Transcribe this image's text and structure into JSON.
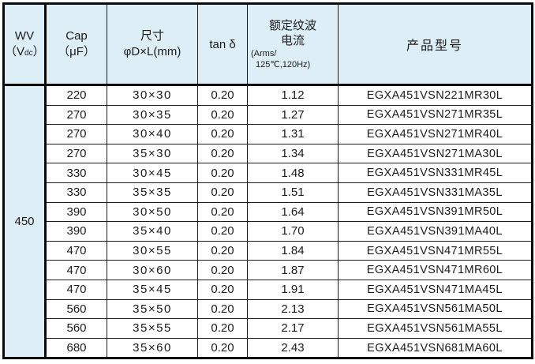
{
  "header": {
    "wv": {
      "line1": "WV",
      "open": "（V",
      "sub": "dc",
      "close": "）"
    },
    "cap": {
      "line1": "Cap",
      "line2": "（μF）"
    },
    "size": {
      "line1": "尺寸",
      "line2": "φD×L(mm)"
    },
    "tan_delta": "tan δ",
    "ripple": {
      "line1": "额定纹波",
      "line2": "电流",
      "line3": "(Arms/",
      "line4": "125℃,120Hz)"
    },
    "model": "产品型号"
  },
  "wv_value": "450",
  "rows": [
    {
      "cap": "220",
      "size": "30×30",
      "tan": "0.20",
      "ripple": "1.12",
      "model": "EGXA451VSN221MR30L"
    },
    {
      "cap": "270",
      "size": "30×35",
      "tan": "0.20",
      "ripple": "1.27",
      "model": "EGXA451VSN271MR35L"
    },
    {
      "cap": "270",
      "size": "30×40",
      "tan": "0.20",
      "ripple": "1.31",
      "model": "EGXA451VSN271MR40L"
    },
    {
      "cap": "270",
      "size": "35×30",
      "tan": "0.20",
      "ripple": "1.34",
      "model": "EGXA451VSN271MA30L"
    },
    {
      "cap": "330",
      "size": "30×45",
      "tan": "0.20",
      "ripple": "1.48",
      "model": "EGXA451VSN331MR45L"
    },
    {
      "cap": "330",
      "size": "35×35",
      "tan": "0.20",
      "ripple": "1.51",
      "model": "EGXA451VSN331MA35L"
    },
    {
      "cap": "390",
      "size": "30×50",
      "tan": "0.20",
      "ripple": "1.64",
      "model": "EGXA451VSN391MR50L"
    },
    {
      "cap": "390",
      "size": "35×40",
      "tan": "0.20",
      "ripple": "1.70",
      "model": "EGXA451VSN391MA40L"
    },
    {
      "cap": "470",
      "size": "30×55",
      "tan": "0.20",
      "ripple": "1.84",
      "model": "EGXA451VSN471MR55L"
    },
    {
      "cap": "470",
      "size": "30×60",
      "tan": "0.20",
      "ripple": "1.87",
      "model": "EGXA451VSN471MR60L"
    },
    {
      "cap": "470",
      "size": "35×45",
      "tan": "0.20",
      "ripple": "1.91",
      "model": "EGXA451VSN471MA45L"
    },
    {
      "cap": "560",
      "size": "35×50",
      "tan": "0.20",
      "ripple": "2.13",
      "model": "EGXA451VSN561MA50L"
    },
    {
      "cap": "560",
      "size": "35×55",
      "tan": "0.20",
      "ripple": "2.17",
      "model": "EGXA451VSN561MA55L"
    },
    {
      "cap": "680",
      "size": "35×60",
      "tan": "0.20",
      "ripple": "2.43",
      "model": "EGXA451VSN681MA60L"
    }
  ]
}
